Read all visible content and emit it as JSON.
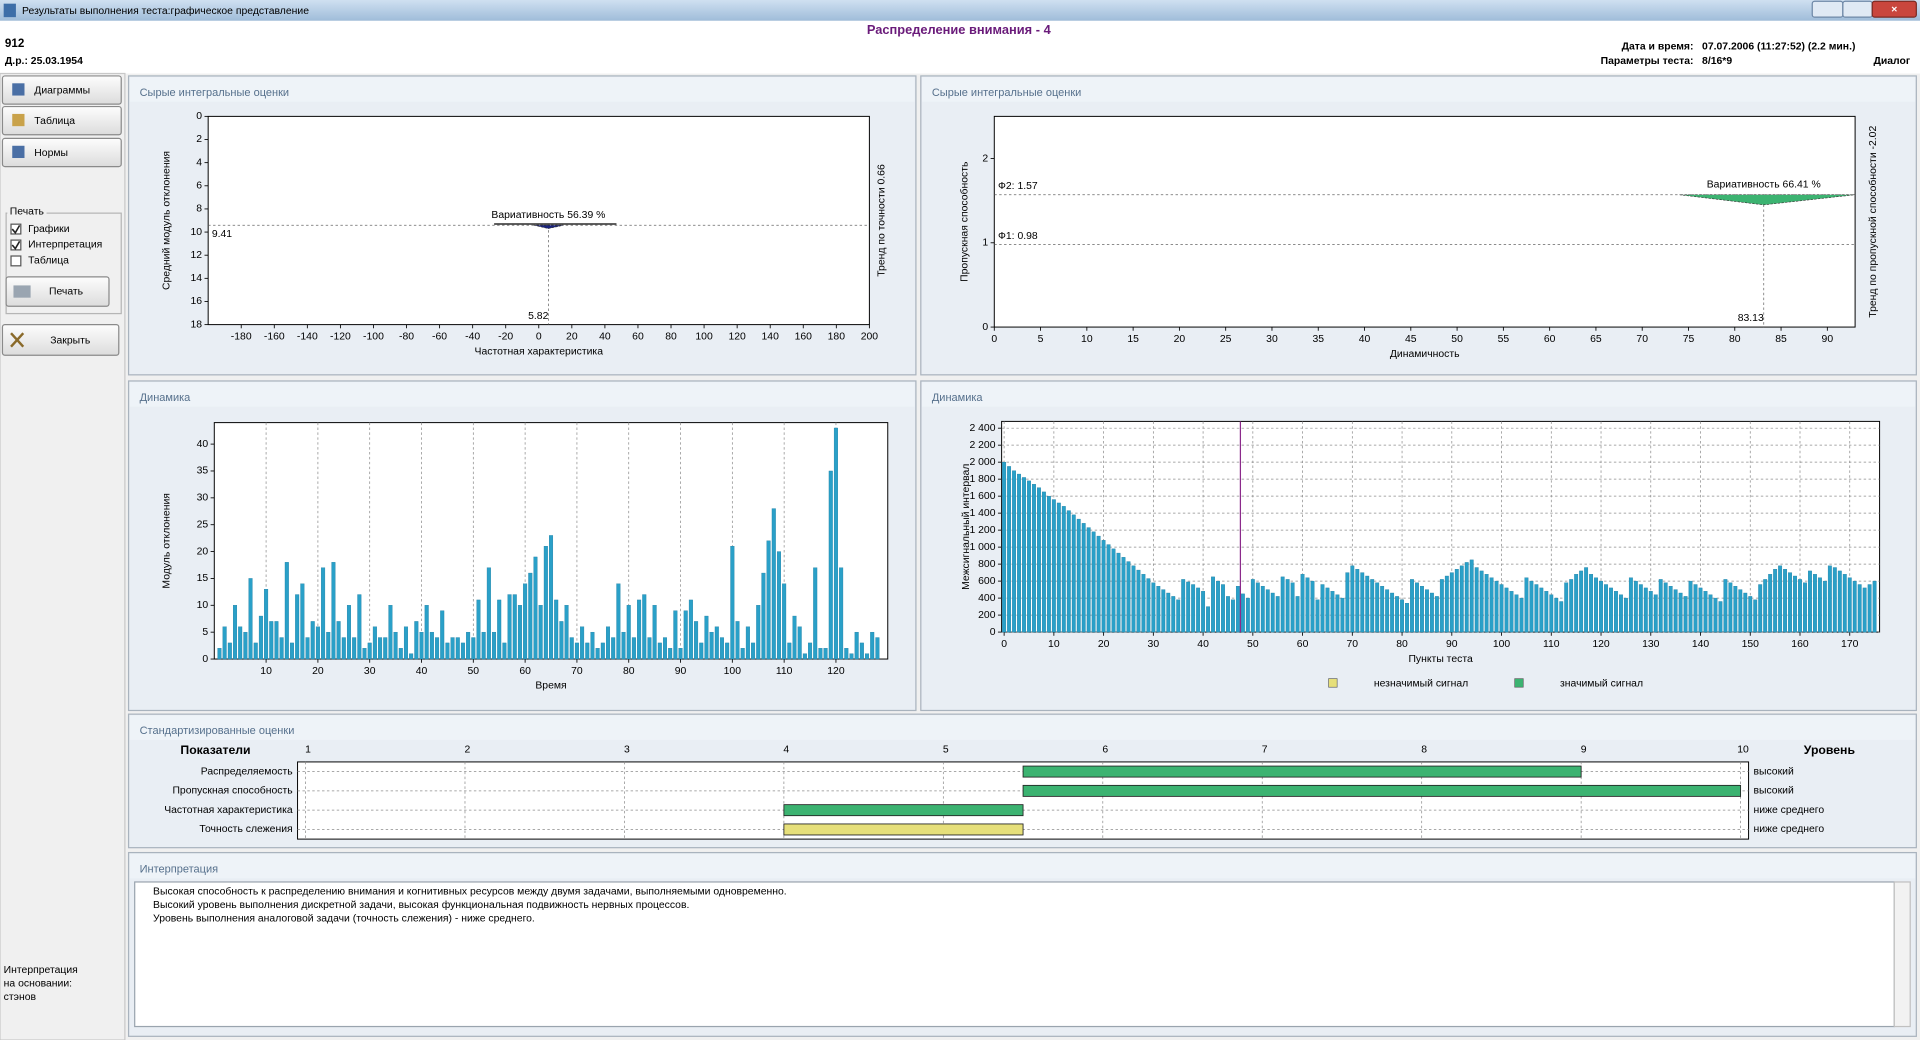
{
  "window": {
    "title": "Результаты выполнения теста:графическое представление"
  },
  "header": {
    "title": "Распределение внимания - 4",
    "id": "912",
    "birth_date": "Д.р.: 25.03.1954",
    "date_label": "Дата и время:",
    "date_value": "07.07.2006 (11:27:52) (2.2 мин.)",
    "params_label": "Параметры теста:",
    "params_value": "8/16*9",
    "mode": "Диалог"
  },
  "sidebar": {
    "buttons": [
      "Диаграммы",
      "Таблица",
      "Нормы"
    ],
    "print_group": "Печать",
    "checkboxes": [
      {
        "label": "Графики",
        "checked": true
      },
      {
        "label": "Интерпретация",
        "checked": true
      },
      {
        "label": "Таблица",
        "checked": false
      }
    ],
    "print_button": "Печать",
    "close_button": "Закрыть",
    "footnote": [
      "Интерпретация",
      "на основании:",
      "стэнов"
    ]
  },
  "chart_data": [
    {
      "type": "variability",
      "panel_title": "Сырые интегральные оценки",
      "xlabel": "Частотная характеристика",
      "ylabel": "Средний модуль отклонения",
      "right_label": "Тренд по точности 0.66",
      "annotation": "Вариативность 56.39 %",
      "xlim": [
        -200,
        200
      ],
      "ylim": [
        0,
        18
      ],
      "y_reversed": true,
      "xticks": [
        -180,
        -160,
        -140,
        -120,
        -100,
        -80,
        -60,
        -40,
        -20,
        0,
        20,
        40,
        60,
        80,
        100,
        120,
        140,
        160,
        180,
        200
      ],
      "yticks": [
        0,
        2,
        4,
        6,
        8,
        10,
        12,
        14,
        16,
        18
      ],
      "levels": [
        {
          "value": 9.41
        }
      ],
      "point": {
        "x": 5.82
      },
      "spread": [
        -27,
        47
      ],
      "area": {
        "x": [
          -3,
          5.82,
          15
        ],
        "y": [
          9.41,
          9.7,
          9.41
        ]
      },
      "color": "#1a237e"
    },
    {
      "type": "variability",
      "panel_title": "Сырые интегральные оценки",
      "xlabel": "Динамичность",
      "ylabel": "Пропускная способность",
      "right_label": "Тренд по пропускной способности -2.02",
      "annotation": "Вариативность 66.41 %",
      "xlim": [
        0,
        93
      ],
      "ylim": [
        0,
        2.5
      ],
      "xticks": [
        0,
        5,
        10,
        15,
        20,
        25,
        30,
        35,
        40,
        45,
        50,
        55,
        60,
        65,
        70,
        75,
        80,
        85,
        90
      ],
      "yticks": [
        0,
        1,
        2
      ],
      "levels": [
        {
          "name": "Ф2:",
          "value": 1.57
        },
        {
          "name": "Ф1:",
          "value": 0.98
        }
      ],
      "point": {
        "x": 83.13
      },
      "area": {
        "x": [
          74,
          83.13,
          93
        ],
        "y": [
          1.57,
          1.45,
          1.57
        ]
      },
      "color": "#3cb371"
    },
    {
      "type": "bar",
      "panel_title": "Динамика",
      "xlabel": "Время",
      "ylabel": "Модуль отклонения",
      "xlim": [
        0,
        130
      ],
      "ylim": [
        0,
        44
      ],
      "grid": "x",
      "color": "#2aa0c8",
      "xticks": [
        10,
        20,
        30,
        40,
        50,
        60,
        70,
        80,
        90,
        100,
        110,
        120
      ],
      "yticks": [
        0,
        5,
        10,
        15,
        20,
        25,
        30,
        35,
        40
      ],
      "x": [
        1,
        2,
        3,
        4,
        5,
        6,
        7,
        8,
        9,
        10,
        11,
        12,
        13,
        14,
        15,
        16,
        17,
        18,
        19,
        20,
        21,
        22,
        23,
        24,
        25,
        26,
        27,
        28,
        29,
        30,
        31,
        32,
        33,
        34,
        35,
        36,
        37,
        38,
        39,
        40,
        41,
        42,
        43,
        44,
        45,
        46,
        47,
        48,
        49,
        50,
        51,
        52,
        53,
        54,
        55,
        56,
        57,
        58,
        59,
        60,
        61,
        62,
        63,
        64,
        65,
        66,
        67,
        68,
        69,
        70,
        71,
        72,
        73,
        74,
        75,
        76,
        77,
        78,
        79,
        80,
        81,
        82,
        83,
        84,
        85,
        86,
        87,
        88,
        89,
        90,
        91,
        92,
        93,
        94,
        95,
        96,
        97,
        98,
        99,
        100,
        101,
        102,
        103,
        104,
        105,
        106,
        107,
        108,
        109,
        110,
        111,
        112,
        113,
        114,
        115,
        116,
        117,
        118,
        119,
        120,
        121,
        122,
        123,
        124,
        125,
        126,
        127,
        128
      ],
      "values": [
        2,
        6,
        3,
        10,
        6,
        5,
        15,
        3,
        8,
        13,
        7,
        7,
        4,
        18,
        3,
        12,
        14,
        4,
        7,
        6,
        17,
        5,
        18,
        7,
        4,
        10,
        4,
        12,
        2,
        3,
        6,
        4,
        4,
        10,
        5,
        2,
        6,
        1,
        7,
        5,
        10,
        5,
        4,
        9,
        3,
        4,
        4,
        3,
        5,
        4,
        11,
        5,
        17,
        5,
        11,
        3,
        12,
        12,
        10,
        14,
        16,
        19,
        10,
        21,
        23,
        11,
        7,
        10,
        4,
        3,
        6,
        3,
        5,
        2,
        3,
        6,
        4,
        14,
        5,
        10,
        4,
        11,
        12,
        4,
        10,
        3,
        4,
        2,
        9,
        2,
        9,
        11,
        7,
        3,
        8,
        5,
        6,
        4,
        3,
        21,
        7,
        2,
        6,
        3,
        10,
        16,
        22,
        28,
        20,
        14,
        3,
        8,
        6,
        1,
        3,
        17,
        2,
        2,
        35,
        43,
        17,
        2,
        1,
        5,
        3,
        1,
        5,
        4
      ]
    },
    {
      "type": "bar",
      "panel_title": "Динамика",
      "xlabel": "Пункты теста",
      "ylabel": "Межсигнальный интервал",
      "xlim": [
        -0.5,
        176
      ],
      "ylim": [
        0,
        2480
      ],
      "grid": "both",
      "color": "#2aa0c8",
      "marker_x": 47.5,
      "marker_color": "#8b2a8b",
      "xticks": [
        0,
        10,
        20,
        30,
        40,
        50,
        60,
        70,
        80,
        90,
        100,
        110,
        120,
        130,
        140,
        150,
        160,
        170
      ],
      "yticks": [
        0,
        200,
        400,
        600,
        800,
        {
          "value": 1000,
          "label": "1 000"
        },
        {
          "value": 1200,
          "label": "1 200"
        },
        {
          "value": 1400,
          "label": "1 400"
        },
        {
          "value": 1600,
          "label": "1 600"
        },
        {
          "value": 1800,
          "label": "1 800"
        },
        {
          "value": 2000,
          "label": "2 000"
        },
        {
          "value": 2200,
          "label": "2 200"
        },
        {
          "value": 2400,
          "label": "2 400"
        }
      ],
      "legend": [
        {
          "name": "незначимый сигнал",
          "color": "#e6df7a"
        },
        {
          "name": "значимый сигнал",
          "color": "#3cb371"
        }
      ],
      "x": [
        0,
        1,
        2,
        3,
        4,
        5,
        6,
        7,
        8,
        9,
        10,
        11,
        12,
        13,
        14,
        15,
        16,
        17,
        18,
        19,
        20,
        21,
        22,
        23,
        24,
        25,
        26,
        27,
        28,
        29,
        30,
        31,
        32,
        33,
        34,
        35,
        36,
        37,
        38,
        39,
        40,
        41,
        42,
        43,
        44,
        45,
        46,
        47,
        48,
        49,
        50,
        51,
        52,
        53,
        54,
        55,
        56,
        57,
        58,
        59,
        60,
        61,
        62,
        63,
        64,
        65,
        66,
        67,
        68,
        69,
        70,
        71,
        72,
        73,
        74,
        75,
        76,
        77,
        78,
        79,
        80,
        81,
        82,
        83,
        84,
        85,
        86,
        87,
        88,
        89,
        90,
        91,
        92,
        93,
        94,
        95,
        96,
        97,
        98,
        99,
        100,
        101,
        102,
        103,
        104,
        105,
        106,
        107,
        108,
        109,
        110,
        111,
        112,
        113,
        114,
        115,
        116,
        117,
        118,
        119,
        120,
        121,
        122,
        123,
        124,
        125,
        126,
        127,
        128,
        129,
        130,
        131,
        132,
        133,
        134,
        135,
        136,
        137,
        138,
        139,
        140,
        141,
        142,
        143,
        144,
        145,
        146,
        147,
        148,
        149,
        150,
        151,
        152,
        153,
        154,
        155,
        156,
        157,
        158,
        159,
        160,
        161,
        162,
        163,
        164,
        165,
        166,
        167,
        168,
        169,
        170,
        171,
        172,
        173,
        174,
        175
      ],
      "values": [
        2000,
        1950,
        1900,
        1860,
        1820,
        1780,
        1740,
        1700,
        1650,
        1600,
        1560,
        1520,
        1480,
        1430,
        1380,
        1330,
        1280,
        1230,
        1180,
        1130,
        1080,
        1030,
        980,
        930,
        880,
        830,
        780,
        730,
        680,
        630,
        580,
        540,
        500,
        460,
        420,
        380,
        620,
        590,
        560,
        520,
        480,
        300,
        650,
        600,
        560,
        420,
        380,
        540,
        450,
        400,
        620,
        580,
        540,
        500,
        460,
        420,
        650,
        620,
        580,
        420,
        680,
        640,
        600,
        380,
        560,
        520,
        480,
        440,
        400,
        700,
        780,
        740,
        700,
        660,
        620,
        580,
        540,
        500,
        460,
        420,
        380,
        340,
        620,
        580,
        540,
        500,
        460,
        420,
        620,
        660,
        700,
        740,
        780,
        820,
        850,
        760,
        720,
        680,
        640,
        600,
        560,
        520,
        480,
        440,
        400,
        640,
        600,
        560,
        520,
        480,
        440,
        400,
        360,
        580,
        620,
        680,
        720,
        760,
        680,
        640,
        600,
        560,
        520,
        480,
        440,
        400,
        640,
        600,
        560,
        520,
        480,
        440,
        620,
        580,
        540,
        500,
        460,
        420,
        600,
        560,
        520,
        480,
        440,
        400,
        360,
        620,
        580,
        540,
        500,
        460,
        420,
        380,
        560,
        620,
        680,
        740,
        780,
        740,
        700,
        660,
        620,
        580,
        720,
        680,
        640,
        600,
        780,
        760,
        720,
        680,
        640,
        600,
        560,
        520,
        560,
        600
      ]
    },
    {
      "type": "range_bar",
      "panel_title": "Стандартизированные оценки",
      "label_header": "Показатели",
      "level_header": "Уровень",
      "categories": [
        "Распределяемость",
        "Пропускная способность",
        "Частотная характеристика",
        "Точность слежения"
      ],
      "values": [
        9,
        10,
        4,
        4
      ],
      "base": 5.5,
      "colors": [
        "#3cb371",
        "#3cb371",
        "#3cb371",
        "#e6df7a"
      ],
      "levels": [
        "высокий",
        "высокий",
        "ниже среднего",
        "ниже среднего"
      ],
      "xlim": [
        0.95,
        10.05
      ],
      "xticks": [
        1,
        2,
        3,
        4,
        5,
        6,
        7,
        8,
        9,
        10
      ],
      "grid": "x"
    }
  ],
  "interpretation": {
    "title": "Интерпретация",
    "lines": [
      "Высокая способность к распределению внимания и когнитивных ресурсов между двумя задачами, выполняемыми одновременно.",
      "Высокий уровень выполнения дискретной задачи, высокая функциональная подвижность нервных процессов.",
      "Уровень выполнения аналоговой задачи (точность слежения) - ниже среднего."
    ]
  }
}
